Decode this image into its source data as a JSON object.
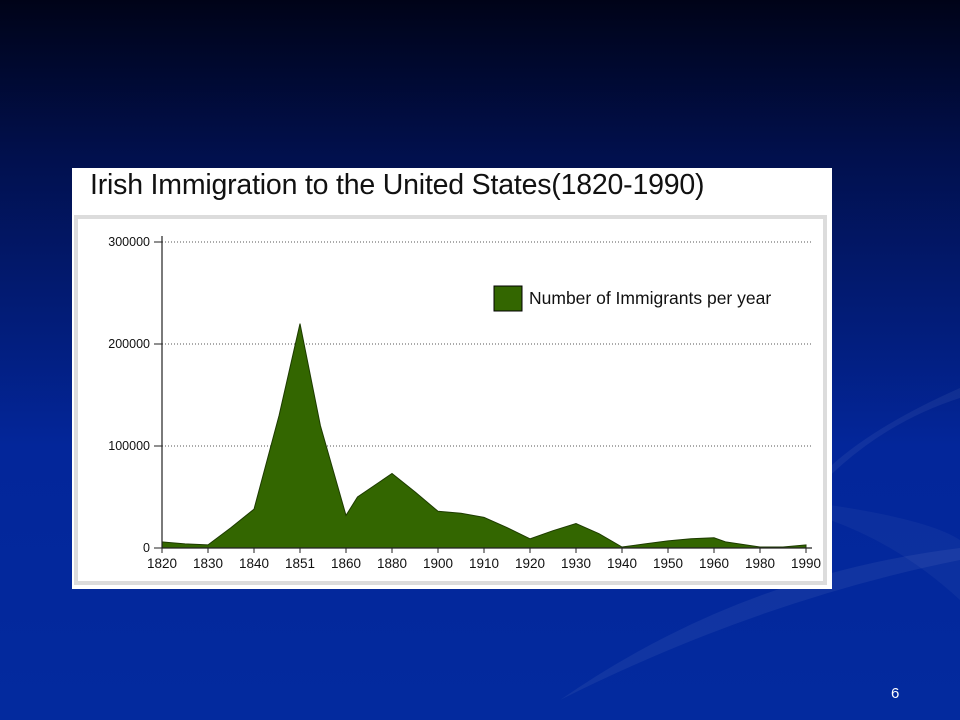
{
  "slide_number": "6",
  "chart_data": {
    "type": "area",
    "title": "Irish Immigration to the United States(1820-1990)",
    "xlabel": "",
    "ylabel": "",
    "ylim": [
      0,
      300000
    ],
    "yticks": [
      0,
      100000,
      200000,
      300000
    ],
    "ytick_labels": [
      "0",
      "100000",
      "200000",
      "300000"
    ],
    "xtick_labels": [
      "1820",
      "1830",
      "1840",
      "1851",
      "1860",
      "1880",
      "1900",
      "1910",
      "1920",
      "1930",
      "1940",
      "1950",
      "1960",
      "1980",
      "1990"
    ],
    "grid": "horizontal-dotted",
    "legend_placement": "top-right",
    "series": [
      {
        "name": "Number of Immigrants per year",
        "color": "#336600",
        "x": [
          "1820",
          "1825",
          "1830",
          "1835",
          "1840",
          "1846",
          "1851",
          "1855",
          "1860",
          "1865",
          "1880",
          "1890",
          "1900",
          "1905",
          "1910",
          "1915",
          "1920",
          "1925",
          "1930",
          "1935",
          "1940",
          "1945",
          "1950",
          "1955",
          "1960",
          "1965",
          "1980",
          "1985",
          "1990"
        ],
        "values": [
          6000,
          4000,
          3000,
          20000,
          38000,
          130000,
          220000,
          120000,
          32000,
          50000,
          73000,
          55000,
          36000,
          34000,
          30000,
          20000,
          9000,
          17000,
          24000,
          14000,
          1000,
          4000,
          7000,
          9000,
          10000,
          6000,
          1000,
          1000,
          3000
        ]
      }
    ],
    "colors": {
      "area": "#336600",
      "frame": "#dcdcdc",
      "plot_bg": "#ffffff"
    }
  }
}
